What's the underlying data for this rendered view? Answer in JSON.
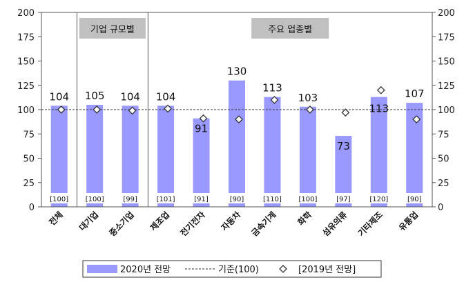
{
  "chart_data": {
    "type": "bar",
    "categories": [
      "전체",
      "대기업",
      "중소기업",
      "제조업",
      "전기전자",
      "자동차",
      "금속기계",
      "화학",
      "섬유의류",
      "기타제조",
      "유통업"
    ],
    "series": [
      {
        "name": "2020년 전망",
        "values": [
          104,
          105,
          104,
          104,
          91,
          130,
          113,
          103,
          73,
          113,
          107
        ]
      },
      {
        "name": "[2019년 전망]",
        "values": [
          100,
          100,
          99,
          101,
          91,
          90,
          110,
          100,
          97,
          120,
          90
        ]
      }
    ],
    "value_labels": [
      "104",
      "105",
      "104",
      "104",
      "91",
      "130",
      "113",
      "103",
      "73",
      "113",
      "107"
    ],
    "bracket_labels": [
      "[100]",
      "[100]",
      "[99]",
      "[101]",
      "[91]",
      "[90]",
      "[110]",
      "[100]",
      "[97]",
      "[120]",
      "[90]"
    ],
    "reference": {
      "name": "기준(100)",
      "value": 100
    },
    "groups": [
      {
        "label": "기업 규모별",
        "from": 1,
        "to": 2
      },
      {
        "label": "주요 업종별",
        "from": 3,
        "to": 10
      }
    ],
    "ylim": [
      0,
      200
    ],
    "yticks": [
      "0",
      "25",
      "50",
      "75",
      "100",
      "125",
      "150",
      "175",
      "200"
    ],
    "grid": false,
    "legend_position": "bottom",
    "colors": {
      "bar": "#9999ff",
      "marker": "#ffffff",
      "reference": "#333333",
      "group_box": "#c0c0c0"
    }
  }
}
